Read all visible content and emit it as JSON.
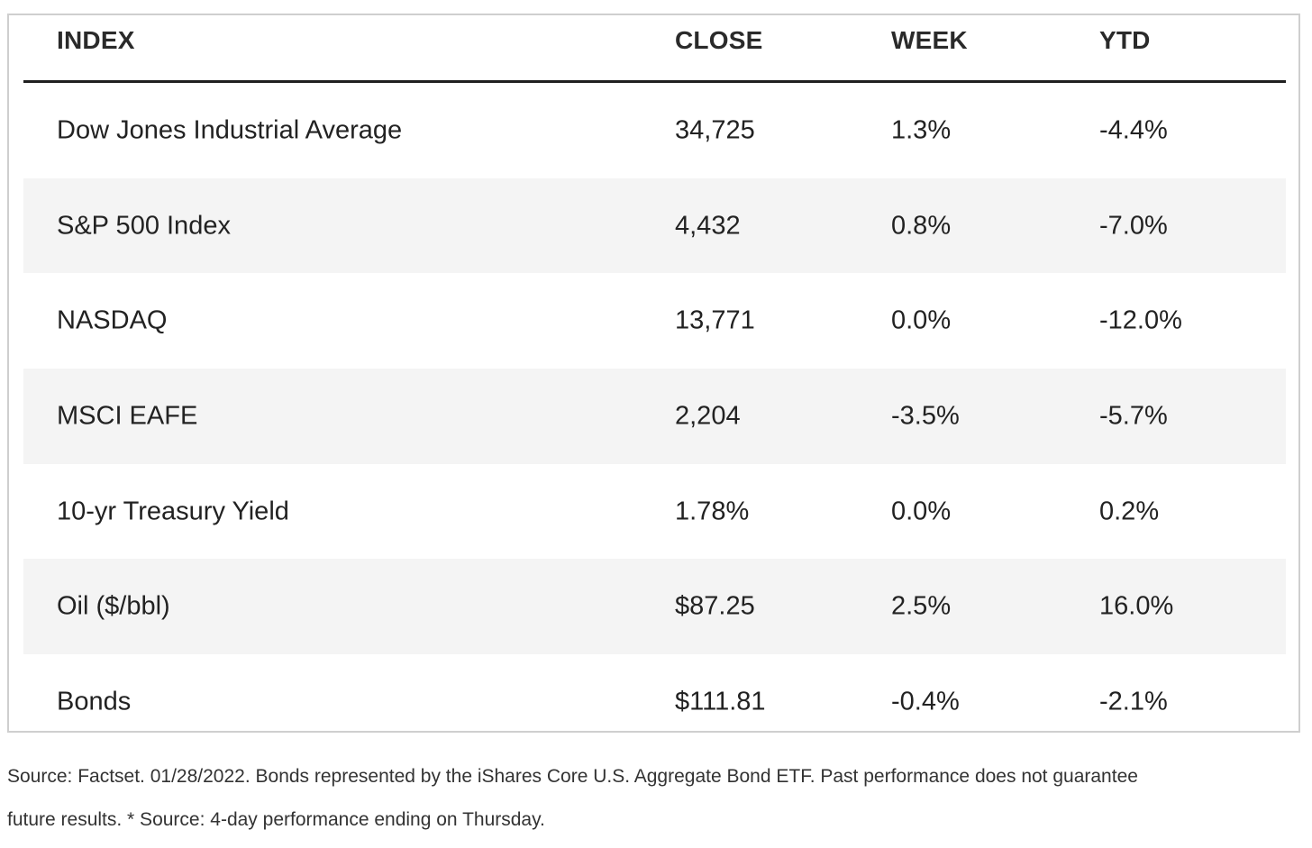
{
  "table": {
    "headers": {
      "index": "INDEX",
      "close": "CLOSE",
      "week": "WEEK",
      "ytd": "YTD"
    },
    "rows": [
      {
        "index": "Dow Jones Industrial Average",
        "close": "34,725",
        "week": "1.3%",
        "ytd": "-4.4%"
      },
      {
        "index": "S&P 500 Index",
        "close": "4,432",
        "week": "0.8%",
        "ytd": "-7.0%"
      },
      {
        "index": "NASDAQ",
        "close": "13,771",
        "week": "0.0%",
        "ytd": "-12.0%"
      },
      {
        "index": "MSCI EAFE",
        "close": "2,204",
        "week": "-3.5%",
        "ytd": "-5.7%"
      },
      {
        "index": "10-yr Treasury Yield",
        "close": "1.78%",
        "week": "0.0%",
        "ytd": "0.2%"
      },
      {
        "index": "Oil ($/bbl)",
        "close": "$87.25",
        "week": "2.5%",
        "ytd": "16.0%"
      },
      {
        "index": "Bonds",
        "close": "$111.81",
        "week": "-0.4%",
        "ytd": "-2.1%"
      }
    ]
  },
  "footnote": {
    "line1": "Source: Factset. 01/28/2022. Bonds represented by the iShares Core U.S. Aggregate Bond ETF. Past performance does not guarantee",
    "line2": "future results. * Source: 4-day performance ending on Thursday."
  },
  "colors": {
    "row_shade": "#f4f4f4",
    "frame_border": "#cfcfcf",
    "header_rule": "#1f1f1f",
    "text": "#222222"
  }
}
